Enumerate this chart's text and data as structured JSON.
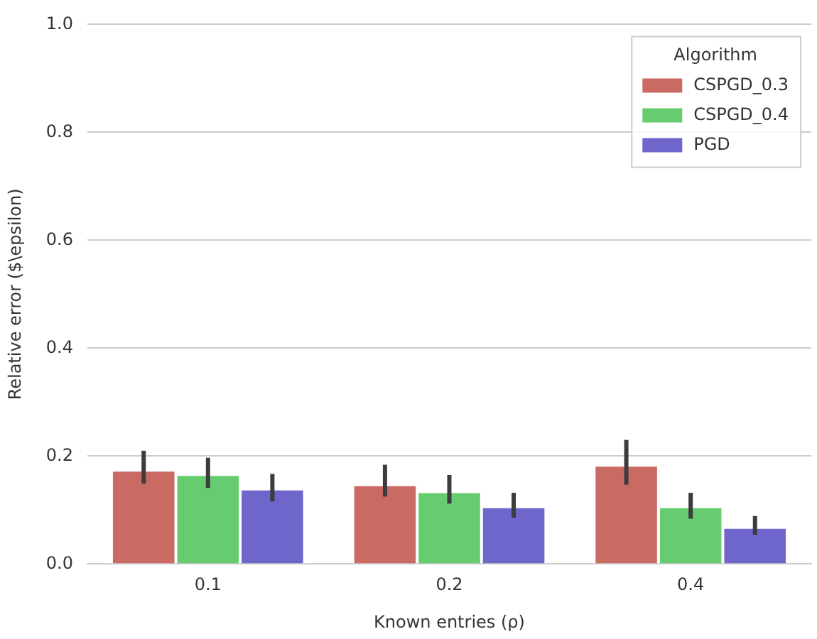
{
  "chart_data": {
    "type": "bar",
    "xlabel": "Known entries (ρ)",
    "ylabel": "Relative error ($\\epsilon)",
    "legend_title": "Algorithm",
    "categories": [
      "0.1",
      "0.2",
      "0.4"
    ],
    "series": [
      {
        "name": "CSPGD_0.3",
        "color": "#c96b63",
        "values": [
          0.174,
          0.147,
          0.183
        ],
        "errors": [
          [
            0.149,
            0.21
          ],
          [
            0.125,
            0.184
          ],
          [
            0.147,
            0.23
          ]
        ]
      },
      {
        "name": "CSPGD_0.4",
        "color": "#66cc6f",
        "values": [
          0.166,
          0.134,
          0.106
        ],
        "errors": [
          [
            0.141,
            0.197
          ],
          [
            0.112,
            0.165
          ],
          [
            0.084,
            0.132
          ]
        ]
      },
      {
        "name": "PGD",
        "color": "#6f66cc",
        "values": [
          0.139,
          0.106,
          0.068
        ],
        "errors": [
          [
            0.116,
            0.167
          ],
          [
            0.086,
            0.132
          ],
          [
            0.054,
            0.089
          ]
        ]
      }
    ],
    "ylim": [
      0,
      1
    ],
    "yticks": [
      {
        "value": 0,
        "label": "0.0"
      },
      0.2,
      0.4,
      0.6,
      0.8,
      {
        "value": 1,
        "label": "1.0"
      }
    ],
    "grid": "y",
    "legend": "top right"
  }
}
